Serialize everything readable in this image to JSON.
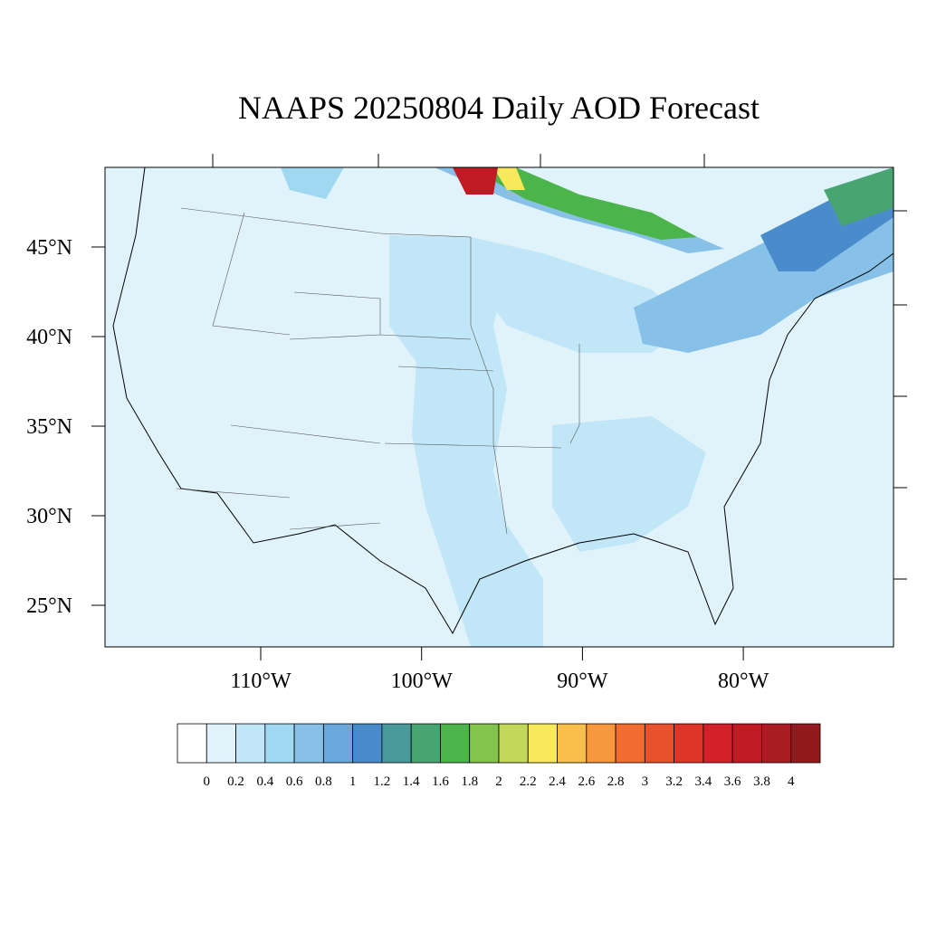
{
  "title": "NAAPS 20250804 Daily AOD Forecast",
  "lat_ticks": [
    {
      "value": 45,
      "label": "45°N"
    },
    {
      "value": 40,
      "label": "40°N"
    },
    {
      "value": 35,
      "label": "35°N"
    },
    {
      "value": 30,
      "label": "30°N"
    },
    {
      "value": 25,
      "label": "25°N"
    }
  ],
  "lon_ticks": [
    {
      "value": -110,
      "label": "110°W"
    },
    {
      "value": -100,
      "label": "100°W"
    },
    {
      "value": -90,
      "label": "90°W"
    },
    {
      "value": -80,
      "label": "80°W"
    }
  ],
  "colorbar": {
    "levels": [
      0,
      0.2,
      0.4,
      0.6,
      0.8,
      1,
      1.2,
      1.4,
      1.6,
      1.8,
      2,
      2.2,
      2.4,
      2.6,
      2.8,
      3,
      3.2,
      3.4,
      3.6,
      3.8,
      4
    ],
    "colors": [
      "#ffffff",
      "#e0f3fb",
      "#c0e6f7",
      "#a0d8f2",
      "#87c1e8",
      "#6aa7da",
      "#4a8ccb",
      "#4a9a9c",
      "#48a571",
      "#4bb44a",
      "#85c44c",
      "#c3d75a",
      "#f8e95a",
      "#f8c04b",
      "#f7973e",
      "#f26b2f",
      "#e8512b",
      "#df3528",
      "#d42029",
      "#c01b25",
      "#a91c21",
      "#921a1d"
    ]
  }
}
